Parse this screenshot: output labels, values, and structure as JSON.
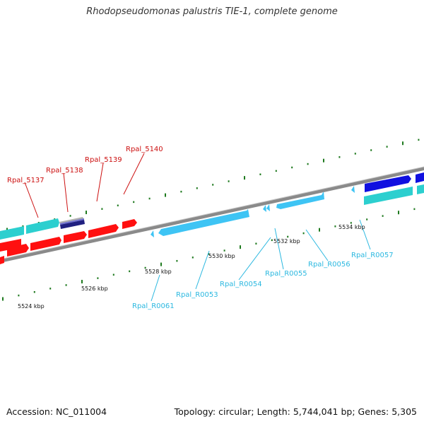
{
  "title": "Rhodopseudomonas palustris TIE-1, complete genome",
  "footer": {
    "accession": "Accession: NC_011004",
    "topology": "Topology: circular; Length: 5,744,041 bp; Genes: 5,305"
  },
  "colors": {
    "background": "#ffffff",
    "backbone": "#8a8a8a",
    "tick": "#1f7a1f",
    "red_gene": "#ff1010",
    "teal_gene": "#2ccfcf",
    "blue_gene": "#1010e0",
    "gray_gene": "#b0b0b0",
    "navy_gene": "#202080",
    "light_blue_gene": "#3ec4f4",
    "red_label": "#cc1010",
    "blue_label": "#2bb8e0"
  },
  "kbp_labels": [
    "5524 kbp",
    "5526 kbp",
    "5528 kbp",
    "5530 kbp",
    "5532 kbp",
    "5534 kbp"
  ],
  "gene_labels_top": [
    "Rpal_5137",
    "Rpal_5138",
    "Rpal_5139",
    "Rpal_5140"
  ],
  "gene_labels_bottom": [
    "Rpal_R0061",
    "Rpal_R0053",
    "Rpal_R0054",
    "Rpal_R0055",
    "Rpal_R0056",
    "Rpal_R0057"
  ],
  "icons": [
    "gene-arrow",
    "scale-tick"
  ]
}
